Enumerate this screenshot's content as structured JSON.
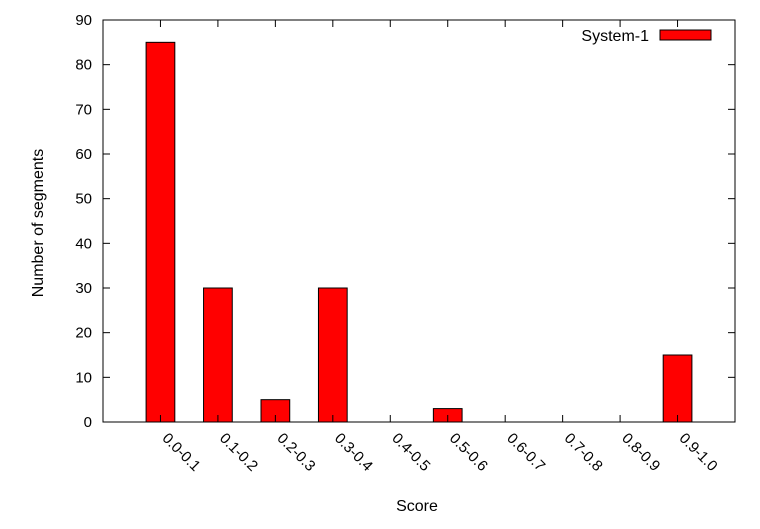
{
  "chart_data": {
    "type": "bar",
    "categories": [
      "0.0-0.1",
      "0.1-0.2",
      "0.2-0.3",
      "0.3-0.4",
      "0.4-0.5",
      "0.5-0.6",
      "0.6-0.7",
      "0.7-0.8",
      "0.8-0.9",
      "0.9-1.0"
    ],
    "series": [
      {
        "name": "System-1",
        "values": [
          85,
          30,
          5,
          30,
          0,
          3,
          0,
          0,
          0,
          15
        ]
      }
    ],
    "title": "",
    "xlabel": "Score",
    "ylabel": "Number of segments",
    "ylim": [
      0,
      90
    ],
    "yticks": [
      0,
      10,
      20,
      30,
      40,
      50,
      60,
      70,
      80,
      90
    ],
    "grid": false,
    "legend": "top-right",
    "bar_color": "#ff0000",
    "edge_color": "#000000"
  }
}
